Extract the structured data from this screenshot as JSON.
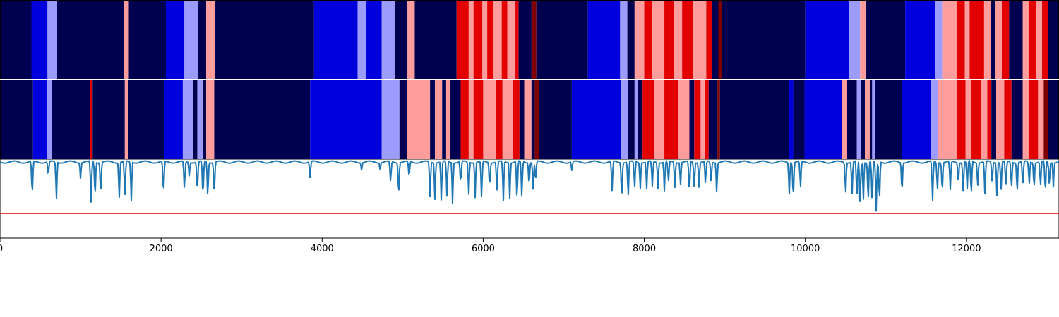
{
  "chart_data": {
    "type": "heatmap",
    "x_ticks": [
      0,
      2000,
      4000,
      6000,
      8000,
      10000,
      12000
    ],
    "xlim": [
      0,
      13150
    ],
    "colors": {
      "0": "#000050",
      "1": "#0000dd",
      "2": "#9c9cff",
      "3": "#ff9c9c",
      "4": "#e30000",
      "5": "#800000"
    },
    "ribbons": [
      [
        [
          0,
          390,
          0
        ],
        [
          390,
          590,
          1
        ],
        [
          590,
          710,
          2
        ],
        [
          710,
          1540,
          0
        ],
        [
          1540,
          1600,
          3
        ],
        [
          1600,
          2060,
          0
        ],
        [
          2060,
          2290,
          1
        ],
        [
          2290,
          2460,
          2
        ],
        [
          2460,
          2560,
          0
        ],
        [
          2560,
          2670,
          3
        ],
        [
          2670,
          3900,
          0
        ],
        [
          3900,
          4440,
          1
        ],
        [
          4440,
          4550,
          2
        ],
        [
          4550,
          4740,
          1
        ],
        [
          4740,
          4900,
          2
        ],
        [
          4900,
          5060,
          0
        ],
        [
          5060,
          5150,
          3
        ],
        [
          5150,
          5670,
          0
        ],
        [
          5670,
          5820,
          4
        ],
        [
          5820,
          5880,
          3
        ],
        [
          5880,
          5990,
          4
        ],
        [
          5990,
          6050,
          3
        ],
        [
          6050,
          6130,
          4
        ],
        [
          6130,
          6230,
          3
        ],
        [
          6230,
          6300,
          4
        ],
        [
          6300,
          6400,
          3
        ],
        [
          6400,
          6440,
          4
        ],
        [
          6440,
          6600,
          0
        ],
        [
          6600,
          6660,
          5
        ],
        [
          6660,
          7300,
          0
        ],
        [
          7300,
          7700,
          1
        ],
        [
          7700,
          7790,
          2
        ],
        [
          7790,
          7880,
          0
        ],
        [
          7880,
          8000,
          3
        ],
        [
          8000,
          8100,
          4
        ],
        [
          8100,
          8250,
          3
        ],
        [
          8250,
          8370,
          4
        ],
        [
          8370,
          8470,
          3
        ],
        [
          8470,
          8600,
          4
        ],
        [
          8600,
          8770,
          3
        ],
        [
          8770,
          8840,
          4
        ],
        [
          8840,
          8920,
          0
        ],
        [
          8920,
          8960,
          5
        ],
        [
          8960,
          10000,
          0
        ],
        [
          10000,
          10540,
          1
        ],
        [
          10540,
          10680,
          2
        ],
        [
          10680,
          10750,
          3
        ],
        [
          10750,
          11240,
          0
        ],
        [
          11240,
          11610,
          1
        ],
        [
          11610,
          11700,
          2
        ],
        [
          11700,
          11880,
          3
        ],
        [
          11880,
          11980,
          4
        ],
        [
          11980,
          12040,
          3
        ],
        [
          12040,
          12220,
          4
        ],
        [
          12220,
          12300,
          3
        ],
        [
          12300,
          12360,
          0
        ],
        [
          12360,
          12440,
          3
        ],
        [
          12440,
          12530,
          4
        ],
        [
          12530,
          12700,
          0
        ],
        [
          12700,
          12780,
          3
        ],
        [
          12780,
          12870,
          4
        ],
        [
          12870,
          12940,
          3
        ],
        [
          12940,
          13010,
          4
        ],
        [
          13010,
          13150,
          0
        ]
      ],
      [
        [
          0,
          410,
          0
        ],
        [
          410,
          580,
          1
        ],
        [
          580,
          640,
          2
        ],
        [
          640,
          1120,
          0
        ],
        [
          1120,
          1150,
          4
        ],
        [
          1150,
          1550,
          0
        ],
        [
          1550,
          1590,
          3
        ],
        [
          1590,
          2040,
          0
        ],
        [
          2040,
          2270,
          1
        ],
        [
          2270,
          2400,
          2
        ],
        [
          2400,
          2450,
          0
        ],
        [
          2450,
          2520,
          2
        ],
        [
          2520,
          2560,
          0
        ],
        [
          2560,
          2660,
          3
        ],
        [
          2660,
          3850,
          0
        ],
        [
          3850,
          4740,
          1
        ],
        [
          4740,
          4960,
          2
        ],
        [
          4960,
          5050,
          0
        ],
        [
          5050,
          5340,
          3
        ],
        [
          5340,
          5400,
          0
        ],
        [
          5400,
          5490,
          3
        ],
        [
          5490,
          5540,
          0
        ],
        [
          5540,
          5590,
          3
        ],
        [
          5590,
          5720,
          0
        ],
        [
          5720,
          5820,
          4
        ],
        [
          5820,
          5880,
          3
        ],
        [
          5880,
          6000,
          4
        ],
        [
          6000,
          6160,
          3
        ],
        [
          6160,
          6240,
          4
        ],
        [
          6240,
          6370,
          3
        ],
        [
          6370,
          6450,
          4
        ],
        [
          6450,
          6510,
          0
        ],
        [
          6510,
          6600,
          3
        ],
        [
          6600,
          6640,
          0
        ],
        [
          6640,
          6690,
          5
        ],
        [
          6690,
          7100,
          0
        ],
        [
          7100,
          7710,
          1
        ],
        [
          7710,
          7800,
          2
        ],
        [
          7800,
          7880,
          0
        ],
        [
          7880,
          7920,
          2
        ],
        [
          7920,
          7980,
          0
        ],
        [
          7980,
          8120,
          4
        ],
        [
          8120,
          8250,
          3
        ],
        [
          8250,
          8420,
          4
        ],
        [
          8420,
          8560,
          3
        ],
        [
          8560,
          8620,
          0
        ],
        [
          8620,
          8700,
          4
        ],
        [
          8700,
          8750,
          3
        ],
        [
          8750,
          8800,
          4
        ],
        [
          8800,
          8910,
          0
        ],
        [
          8910,
          8940,
          5
        ],
        [
          8940,
          9800,
          0
        ],
        [
          9800,
          9850,
          1
        ],
        [
          9850,
          9990,
          0
        ],
        [
          9990,
          10450,
          1
        ],
        [
          10450,
          10520,
          3
        ],
        [
          10520,
          10640,
          0
        ],
        [
          10640,
          10690,
          2
        ],
        [
          10690,
          10740,
          0
        ],
        [
          10740,
          10800,
          3
        ],
        [
          10800,
          10830,
          0
        ],
        [
          10830,
          10870,
          2
        ],
        [
          10870,
          11200,
          0
        ],
        [
          11200,
          11560,
          1
        ],
        [
          11560,
          11650,
          2
        ],
        [
          11650,
          11880,
          3
        ],
        [
          11880,
          11990,
          4
        ],
        [
          11990,
          12060,
          3
        ],
        [
          12060,
          12180,
          4
        ],
        [
          12180,
          12260,
          3
        ],
        [
          12260,
          12310,
          4
        ],
        [
          12310,
          12370,
          0
        ],
        [
          12370,
          12470,
          3
        ],
        [
          12470,
          12560,
          4
        ],
        [
          12560,
          12700,
          0
        ],
        [
          12700,
          12780,
          3
        ],
        [
          12780,
          12890,
          4
        ],
        [
          12890,
          12960,
          3
        ],
        [
          12960,
          13010,
          5
        ],
        [
          13010,
          13150,
          0
        ]
      ]
    ],
    "line": {
      "color": "#1f77b4",
      "dips": [
        [
          400,
          0.75
        ],
        [
          600,
          0.3
        ],
        [
          700,
          0.8
        ],
        [
          1000,
          0.35
        ],
        [
          1130,
          0.85
        ],
        [
          1180,
          0.8
        ],
        [
          1250,
          0.75
        ],
        [
          1480,
          0.8
        ],
        [
          1550,
          0.75
        ],
        [
          1630,
          0.8
        ],
        [
          2030,
          0.75
        ],
        [
          2290,
          0.6
        ],
        [
          2350,
          0.3
        ],
        [
          2450,
          0.7
        ],
        [
          2520,
          0.8
        ],
        [
          2580,
          0.8
        ],
        [
          2660,
          0.75
        ],
        [
          3850,
          0.35
        ],
        [
          4490,
          0.2
        ],
        [
          4720,
          0.2
        ],
        [
          4850,
          0.45
        ],
        [
          4950,
          0.75
        ],
        [
          5080,
          0.35
        ],
        [
          5340,
          0.75
        ],
        [
          5400,
          0.75
        ],
        [
          5480,
          0.8
        ],
        [
          5550,
          0.7
        ],
        [
          5620,
          0.85
        ],
        [
          5720,
          0.5
        ],
        [
          5820,
          0.7
        ],
        [
          5900,
          0.7
        ],
        [
          5980,
          0.75
        ],
        [
          6080,
          0.6
        ],
        [
          6170,
          0.65
        ],
        [
          6250,
          0.8
        ],
        [
          6330,
          0.75
        ],
        [
          6420,
          0.85
        ],
        [
          6480,
          0.75
        ],
        [
          6570,
          0.55
        ],
        [
          6620,
          0.6
        ],
        [
          6650,
          0.45
        ],
        [
          7100,
          0.2
        ],
        [
          7600,
          0.6
        ],
        [
          7720,
          0.85
        ],
        [
          7800,
          0.8
        ],
        [
          7880,
          0.55
        ],
        [
          7950,
          0.6
        ],
        [
          8030,
          0.55
        ],
        [
          8100,
          0.5
        ],
        [
          8170,
          0.55
        ],
        [
          8250,
          0.6
        ],
        [
          8300,
          0.45
        ],
        [
          8380,
          0.55
        ],
        [
          8450,
          0.5
        ],
        [
          8560,
          0.7
        ],
        [
          8620,
          0.6
        ],
        [
          8680,
          0.55
        ],
        [
          8760,
          0.5
        ],
        [
          8830,
          0.45
        ],
        [
          8900,
          0.7
        ],
        [
          9800,
          0.7
        ],
        [
          9850,
          0.85
        ],
        [
          9940,
          0.55
        ],
        [
          10500,
          0.75
        ],
        [
          10580,
          0.7
        ],
        [
          10640,
          0.8
        ],
        [
          10680,
          0.95
        ],
        [
          10720,
          0.85
        ],
        [
          10780,
          0.9
        ],
        [
          10830,
          0.95
        ],
        [
          10880,
          1.0
        ],
        [
          10920,
          0.9
        ],
        [
          11200,
          0.7
        ],
        [
          11580,
          0.8
        ],
        [
          11640,
          0.65
        ],
        [
          11700,
          0.7
        ],
        [
          11800,
          0.55
        ],
        [
          11900,
          0.5
        ],
        [
          11960,
          0.7
        ],
        [
          12010,
          0.55
        ],
        [
          12060,
          0.75
        ],
        [
          12140,
          0.55
        ],
        [
          12230,
          0.65
        ],
        [
          12320,
          0.5
        ],
        [
          12380,
          0.75
        ],
        [
          12430,
          0.6
        ],
        [
          12490,
          0.55
        ],
        [
          12560,
          0.6
        ],
        [
          12630,
          0.7
        ],
        [
          12700,
          0.55
        ],
        [
          12780,
          0.5
        ],
        [
          12840,
          0.6
        ],
        [
          12920,
          0.55
        ],
        [
          12980,
          0.7
        ],
        [
          13030,
          0.55
        ],
        [
          13080,
          0.5
        ]
      ]
    },
    "threshold": {
      "color": "#e00000"
    }
  }
}
